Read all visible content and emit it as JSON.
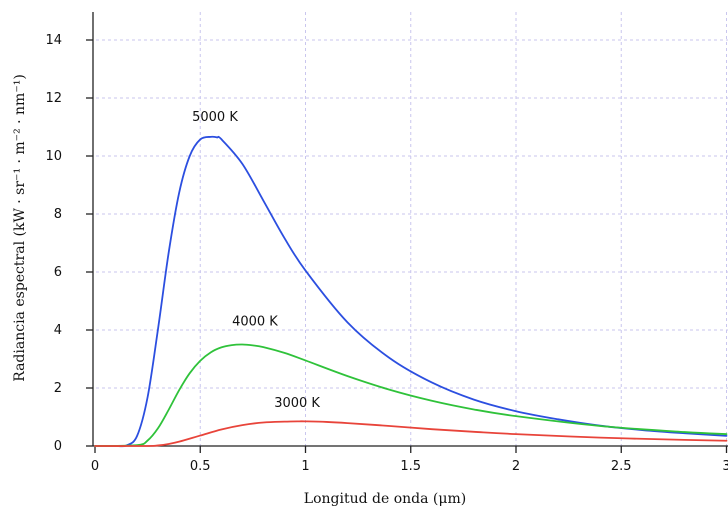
{
  "chart_data": {
    "type": "line",
    "xlabel": "Longitud de onda (μm)",
    "ylabel": "Radiancia espectral (kW · sr⁻¹ · m⁻² · nm⁻¹)",
    "xlim": [
      0,
      3
    ],
    "ylim": [
      0,
      14
    ],
    "x_ticks": [
      "0",
      "0.5",
      "1",
      "1.5",
      "2",
      "2.5",
      "3"
    ],
    "y_ticks": [
      "0",
      "2",
      "4",
      "6",
      "8",
      "10",
      "12",
      "14"
    ],
    "grid": true,
    "series": [
      {
        "name": "5000 K",
        "color": "#2c4fe0",
        "x": [
          0.0,
          0.1,
          0.15,
          0.2,
          0.25,
          0.3,
          0.35,
          0.4,
          0.45,
          0.5,
          0.55,
          0.58,
          0.6,
          0.7,
          0.8,
          0.9,
          1.0,
          1.2,
          1.4,
          1.6,
          1.8,
          2.0,
          2.2,
          2.4,
          2.6,
          2.8,
          3.0
        ],
        "y": [
          0.0,
          0.0,
          0.02,
          0.35,
          1.69,
          4.07,
          6.67,
          8.74,
          10.0,
          10.57,
          10.66,
          10.64,
          10.58,
          9.73,
          8.46,
          7.17,
          6.05,
          4.26,
          3.03,
          2.19,
          1.6,
          1.2,
          0.92,
          0.7,
          0.55,
          0.44,
          0.35
        ]
      },
      {
        "name": "4000 K",
        "color": "#2fc23a",
        "x": [
          0.0,
          0.2,
          0.25,
          0.3,
          0.35,
          0.4,
          0.45,
          0.5,
          0.55,
          0.6,
          0.65,
          0.7,
          0.75,
          0.8,
          0.9,
          1.0,
          1.2,
          1.4,
          1.6,
          1.8,
          2.0,
          2.4,
          2.8,
          3.0
        ],
        "y": [
          0.0,
          0.03,
          0.19,
          0.62,
          1.25,
          1.93,
          2.51,
          2.94,
          3.23,
          3.4,
          3.48,
          3.5,
          3.47,
          3.41,
          3.21,
          2.95,
          2.41,
          1.94,
          1.56,
          1.26,
          1.03,
          0.69,
          0.48,
          0.41
        ]
      },
      {
        "name": "3000 K",
        "color": "#e8443a",
        "x": [
          0.0,
          0.25,
          0.3,
          0.35,
          0.4,
          0.5,
          0.6,
          0.7,
          0.8,
          0.9,
          0.97,
          1.0,
          1.1,
          1.2,
          1.4,
          1.6,
          1.8,
          2.0,
          2.4,
          2.8,
          3.0
        ],
        "y": [
          0.0,
          0.0,
          0.02,
          0.07,
          0.15,
          0.36,
          0.57,
          0.72,
          0.81,
          0.84,
          0.85,
          0.85,
          0.83,
          0.79,
          0.69,
          0.58,
          0.49,
          0.41,
          0.29,
          0.21,
          0.18
        ]
      }
    ],
    "annotations": [
      {
        "text": "5000 K",
        "x": 0.57,
        "y": 11.2
      },
      {
        "text": "4000 K",
        "x": 0.76,
        "y": 4.15
      },
      {
        "text": "3000 K",
        "x": 0.96,
        "y": 1.35
      }
    ]
  }
}
